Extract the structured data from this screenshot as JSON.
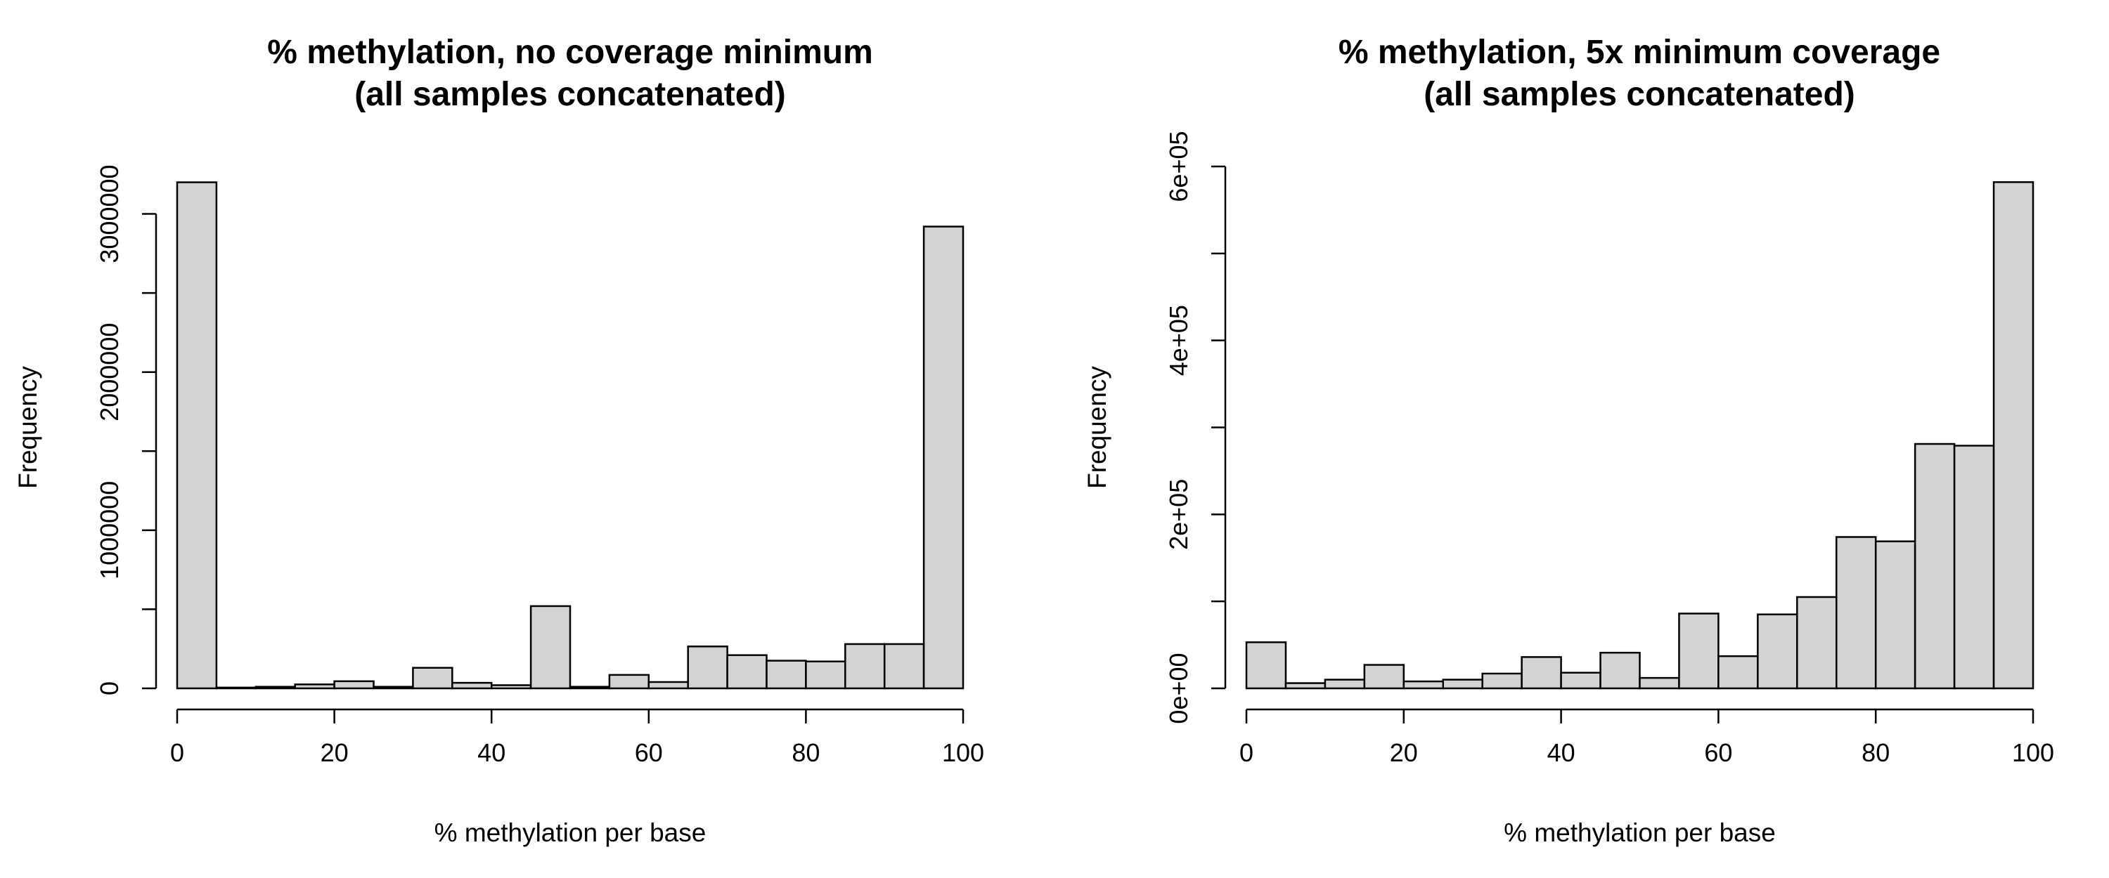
{
  "chart_data": [
    {
      "type": "histogram",
      "title": [
        "% methylation, no coverage minimum",
        "(all samples concatenated)"
      ],
      "xlabel": "% methylation per base",
      "ylabel": "Frequency",
      "xlim": [
        0,
        100
      ],
      "ylim": [
        0,
        3300000
      ],
      "x_ticks": [
        0,
        20,
        40,
        60,
        80,
        100
      ],
      "x_tick_labels": [
        "0",
        "20",
        "40",
        "60",
        "80",
        "100"
      ],
      "y_ticks": [
        0,
        500000,
        1000000,
        1500000,
        2000000,
        2500000,
        3000000
      ],
      "y_tick_labels": [
        "0",
        "",
        "1000000",
        "",
        "2000000",
        "",
        "3000000"
      ],
      "bin_edges": [
        0,
        5,
        10,
        15,
        20,
        25,
        30,
        35,
        40,
        45,
        50,
        55,
        60,
        65,
        70,
        75,
        80,
        85,
        90,
        95,
        100
      ],
      "values": [
        3200000,
        5000,
        10000,
        25000,
        45000,
        10000,
        130000,
        35000,
        20000,
        520000,
        10000,
        85000,
        40000,
        265000,
        210000,
        175000,
        170000,
        280000,
        280000,
        2920000
      ],
      "bar_color": "#d3d3d3",
      "edge_color": "#000000"
    },
    {
      "type": "histogram",
      "title": [
        "% methylation, 5x minimum coverage",
        "(all samples concatenated)"
      ],
      "xlabel": "% methylation per base",
      "ylabel": "Frequency",
      "xlim": [
        0,
        100
      ],
      "ylim": [
        0,
        600000
      ],
      "x_ticks": [
        0,
        20,
        40,
        60,
        80,
        100
      ],
      "x_tick_labels": [
        "0",
        "20",
        "40",
        "60",
        "80",
        "100"
      ],
      "y_ticks": [
        0,
        100000,
        200000,
        300000,
        400000,
        500000,
        600000
      ],
      "y_tick_labels": [
        "0e+00",
        "",
        "2e+05",
        "",
        "4e+05",
        "",
        "6e+05"
      ],
      "bin_edges": [
        0,
        5,
        10,
        15,
        20,
        25,
        30,
        35,
        40,
        45,
        50,
        55,
        60,
        65,
        70,
        75,
        80,
        85,
        90,
        95,
        100
      ],
      "values": [
        53000,
        6000,
        10000,
        27000,
        8000,
        10000,
        17000,
        36000,
        18000,
        41000,
        12000,
        86000,
        37000,
        85000,
        105000,
        174000,
        169000,
        281000,
        279000,
        582000
      ],
      "bar_color": "#d3d3d3",
      "edge_color": "#000000"
    }
  ]
}
